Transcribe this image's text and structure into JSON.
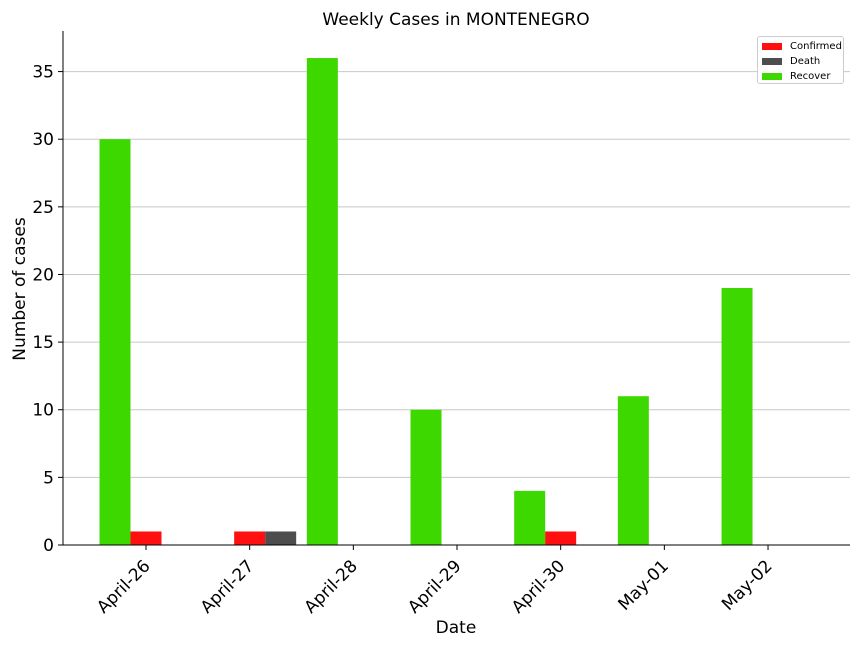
{
  "chart_data": {
    "type": "bar",
    "title": "Weekly Cases in MONTENEGRO",
    "xlabel": "Date",
    "ylabel": "Number of cases",
    "categories": [
      "April-26",
      "April-27",
      "April-28",
      "April-29",
      "April-30",
      "May-01",
      "May-02"
    ],
    "series": [
      {
        "name": "Recover",
        "color": "#3dd800",
        "values": [
          30,
          0,
          36,
          10,
          4,
          11,
          19
        ]
      },
      {
        "name": "Confirmed",
        "color": "#ff0f0f",
        "values": [
          1,
          1,
          0,
          0,
          1,
          0,
          0
        ]
      },
      {
        "name": "Death",
        "color": "#4d4d4d",
        "values": [
          0,
          1,
          0,
          0,
          0,
          0,
          0
        ]
      }
    ],
    "legend": {
      "position": "top-right",
      "entries": [
        {
          "name": "Confirmed",
          "color": "#ff0f0f"
        },
        {
          "name": "Death",
          "color": "#4d4d4d"
        },
        {
          "name": "Recover",
          "color": "#3dd800"
        }
      ]
    },
    "ylim": [
      0,
      38
    ],
    "yticks": [
      0,
      5,
      10,
      15,
      20,
      25,
      30,
      35
    ],
    "grid": "horizontal"
  }
}
